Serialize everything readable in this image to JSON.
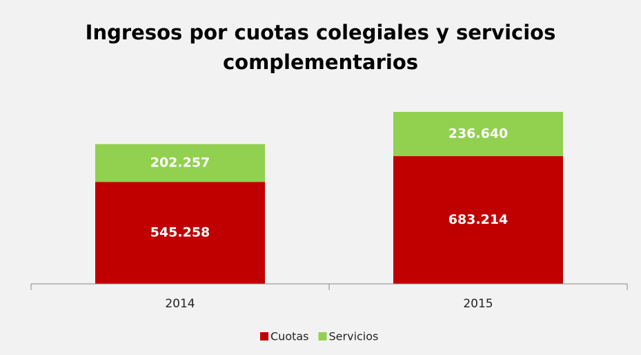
{
  "chart_data": {
    "type": "stacked_bar",
    "title": "Ingresos por cuotas colegiales y servicios complementarios",
    "categories": [
      "2014",
      "2015"
    ],
    "series": [
      {
        "name": "Cuotas",
        "color": "#c00000",
        "values": [
          545258,
          683214
        ],
        "value_labels": [
          "545.258",
          "683.214"
        ]
      },
      {
        "name": "Servicios",
        "color": "#92d050",
        "values": [
          202257,
          236640
        ],
        "value_labels": [
          "202.257",
          "236.640"
        ]
      }
    ],
    "legend": "bottom"
  }
}
